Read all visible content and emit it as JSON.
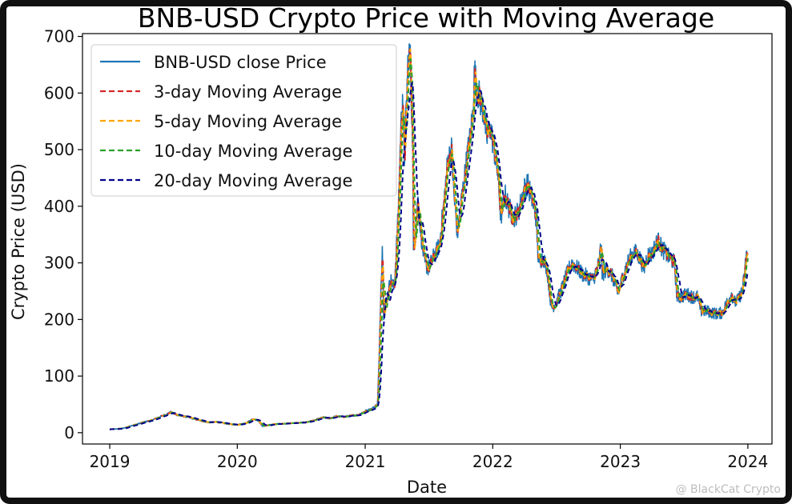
{
  "chart_data": {
    "type": "line",
    "title": "BNB-USD Crypto Price with Moving Average",
    "xlabel": "Date",
    "ylabel": "Crypto Price (USD)",
    "xlim": [
      "2018-10-15",
      "2024-03-10"
    ],
    "ylim": [
      -20,
      705
    ],
    "xticks": [
      "2019",
      "2020",
      "2021",
      "2022",
      "2023",
      "2024"
    ],
    "yticks": [
      0,
      100,
      200,
      300,
      400,
      500,
      600,
      700
    ],
    "grid": false,
    "legend": "top-left",
    "series": [
      {
        "name": "BNB-USD close Price",
        "color": "#1f77b4",
        "style": "solid"
      },
      {
        "name": "3-day Moving Average",
        "color": "#d62728",
        "style": "dashed",
        "window": 3
      },
      {
        "name": "5-day Moving Average",
        "color": "#ffa500",
        "style": "dashed",
        "window": 5
      },
      {
        "name": "10-day Moving Average",
        "color": "#2ca02c",
        "style": "dashed",
        "window": 10
      },
      {
        "name": "20-day Moving Average",
        "color": "#00008b",
        "style": "dashed",
        "window": 20
      }
    ],
    "close_price": [
      [
        "2019-01-01",
        6
      ],
      [
        "2019-01-20",
        6.5
      ],
      [
        "2019-02-10",
        8
      ],
      [
        "2019-03-01",
        12
      ],
      [
        "2019-03-20",
        15
      ],
      [
        "2019-04-10",
        19
      ],
      [
        "2019-05-01",
        22
      ],
      [
        "2019-05-20",
        27
      ],
      [
        "2019-06-10",
        32
      ],
      [
        "2019-06-25",
        36
      ],
      [
        "2019-07-05",
        33
      ],
      [
        "2019-07-20",
        30
      ],
      [
        "2019-08-10",
        28
      ],
      [
        "2019-09-01",
        24
      ],
      [
        "2019-09-20",
        21
      ],
      [
        "2019-10-10",
        18
      ],
      [
        "2019-11-01",
        19
      ],
      [
        "2019-11-20",
        17
      ],
      [
        "2019-12-10",
        15
      ],
      [
        "2020-01-01",
        14
      ],
      [
        "2020-01-25",
        17
      ],
      [
        "2020-02-15",
        24
      ],
      [
        "2020-03-01",
        21
      ],
      [
        "2020-03-13",
        11
      ],
      [
        "2020-03-25",
        13
      ],
      [
        "2020-04-15",
        15
      ],
      [
        "2020-05-10",
        16
      ],
      [
        "2020-06-10",
        17
      ],
      [
        "2020-07-10",
        18
      ],
      [
        "2020-08-10",
        22
      ],
      [
        "2020-09-01",
        27
      ],
      [
        "2020-09-20",
        25
      ],
      [
        "2020-10-10",
        29
      ],
      [
        "2020-11-01",
        28
      ],
      [
        "2020-11-20",
        30
      ],
      [
        "2020-12-10",
        31
      ],
      [
        "2021-01-01",
        38
      ],
      [
        "2021-01-20",
        42
      ],
      [
        "2021-02-05",
        50
      ],
      [
        "2021-02-10",
        130
      ],
      [
        "2021-02-15",
        260
      ],
      [
        "2021-02-19",
        330
      ],
      [
        "2021-02-23",
        210
      ],
      [
        "2021-03-05",
        240
      ],
      [
        "2021-03-15",
        270
      ],
      [
        "2021-03-25",
        255
      ],
      [
        "2021-04-05",
        380
      ],
      [
        "2021-04-12",
        520
      ],
      [
        "2021-04-18",
        600
      ],
      [
        "2021-04-23",
        480
      ],
      [
        "2021-04-28",
        560
      ],
      [
        "2021-05-03",
        650
      ],
      [
        "2021-05-09",
        675
      ],
      [
        "2021-05-12",
        620
      ],
      [
        "2021-05-17",
        500
      ],
      [
        "2021-05-19",
        310
      ],
      [
        "2021-05-24",
        360
      ],
      [
        "2021-06-01",
        410
      ],
      [
        "2021-06-10",
        350
      ],
      [
        "2021-06-20",
        300
      ],
      [
        "2021-07-01",
        290
      ],
      [
        "2021-07-15",
        310
      ],
      [
        "2021-08-01",
        330
      ],
      [
        "2021-08-15",
        410
      ],
      [
        "2021-08-25",
        480
      ],
      [
        "2021-09-05",
        500
      ],
      [
        "2021-09-12",
        420
      ],
      [
        "2021-09-22",
        350
      ],
      [
        "2021-10-01",
        400
      ],
      [
        "2021-10-10",
        440
      ],
      [
        "2021-10-20",
        490
      ],
      [
        "2021-10-28",
        520
      ],
      [
        "2021-11-04",
        560
      ],
      [
        "2021-11-10",
        640
      ],
      [
        "2021-11-15",
        610
      ],
      [
        "2021-11-25",
        590
      ],
      [
        "2021-12-05",
        570
      ],
      [
        "2021-12-15",
        520
      ],
      [
        "2021-12-25",
        540
      ],
      [
        "2022-01-05",
        500
      ],
      [
        "2022-01-15",
        460
      ],
      [
        "2022-01-24",
        380
      ],
      [
        "2022-02-05",
        420
      ],
      [
        "2022-02-15",
        400
      ],
      [
        "2022-03-01",
        380
      ],
      [
        "2022-03-15",
        390
      ],
      [
        "2022-04-01",
        430
      ],
      [
        "2022-04-10",
        440
      ],
      [
        "2022-04-25",
        410
      ],
      [
        "2022-05-05",
        380
      ],
      [
        "2022-05-12",
        300
      ],
      [
        "2022-05-25",
        310
      ],
      [
        "2022-06-05",
        290
      ],
      [
        "2022-06-18",
        220
      ],
      [
        "2022-07-01",
        230
      ],
      [
        "2022-07-15",
        250
      ],
      [
        "2022-08-01",
        280
      ],
      [
        "2022-08-15",
        300
      ],
      [
        "2022-09-01",
        290
      ],
      [
        "2022-09-15",
        280
      ],
      [
        "2022-10-01",
        275
      ],
      [
        "2022-10-15",
        270
      ],
      [
        "2022-11-01",
        300
      ],
      [
        "2022-11-08",
        340
      ],
      [
        "2022-11-10",
        280
      ],
      [
        "2022-11-25",
        290
      ],
      [
        "2022-12-10",
        275
      ],
      [
        "2022-12-25",
        245
      ],
      [
        "2023-01-10",
        280
      ],
      [
        "2023-01-25",
        305
      ],
      [
        "2023-02-10",
        320
      ],
      [
        "2023-02-25",
        310
      ],
      [
        "2023-03-10",
        290
      ],
      [
        "2023-03-20",
        315
      ],
      [
        "2023-04-01",
        315
      ],
      [
        "2023-04-18",
        340
      ],
      [
        "2023-05-01",
        325
      ],
      [
        "2023-05-20",
        310
      ],
      [
        "2023-06-05",
        300
      ],
      [
        "2023-06-12",
        240
      ],
      [
        "2023-06-25",
        240
      ],
      [
        "2023-07-10",
        245
      ],
      [
        "2023-07-25",
        240
      ],
      [
        "2023-08-10",
        240
      ],
      [
        "2023-08-20",
        215
      ],
      [
        "2023-09-05",
        215
      ],
      [
        "2023-09-20",
        212
      ],
      [
        "2023-10-05",
        210
      ],
      [
        "2023-10-20",
        212
      ],
      [
        "2023-11-01",
        228
      ],
      [
        "2023-11-15",
        245
      ],
      [
        "2023-11-25",
        230
      ],
      [
        "2023-12-05",
        235
      ],
      [
        "2023-12-15",
        250
      ],
      [
        "2023-12-22",
        275
      ],
      [
        "2023-12-28",
        320
      ],
      [
        "2024-01-01",
        305
      ]
    ]
  },
  "watermark": "@ BlackCat Crypto"
}
